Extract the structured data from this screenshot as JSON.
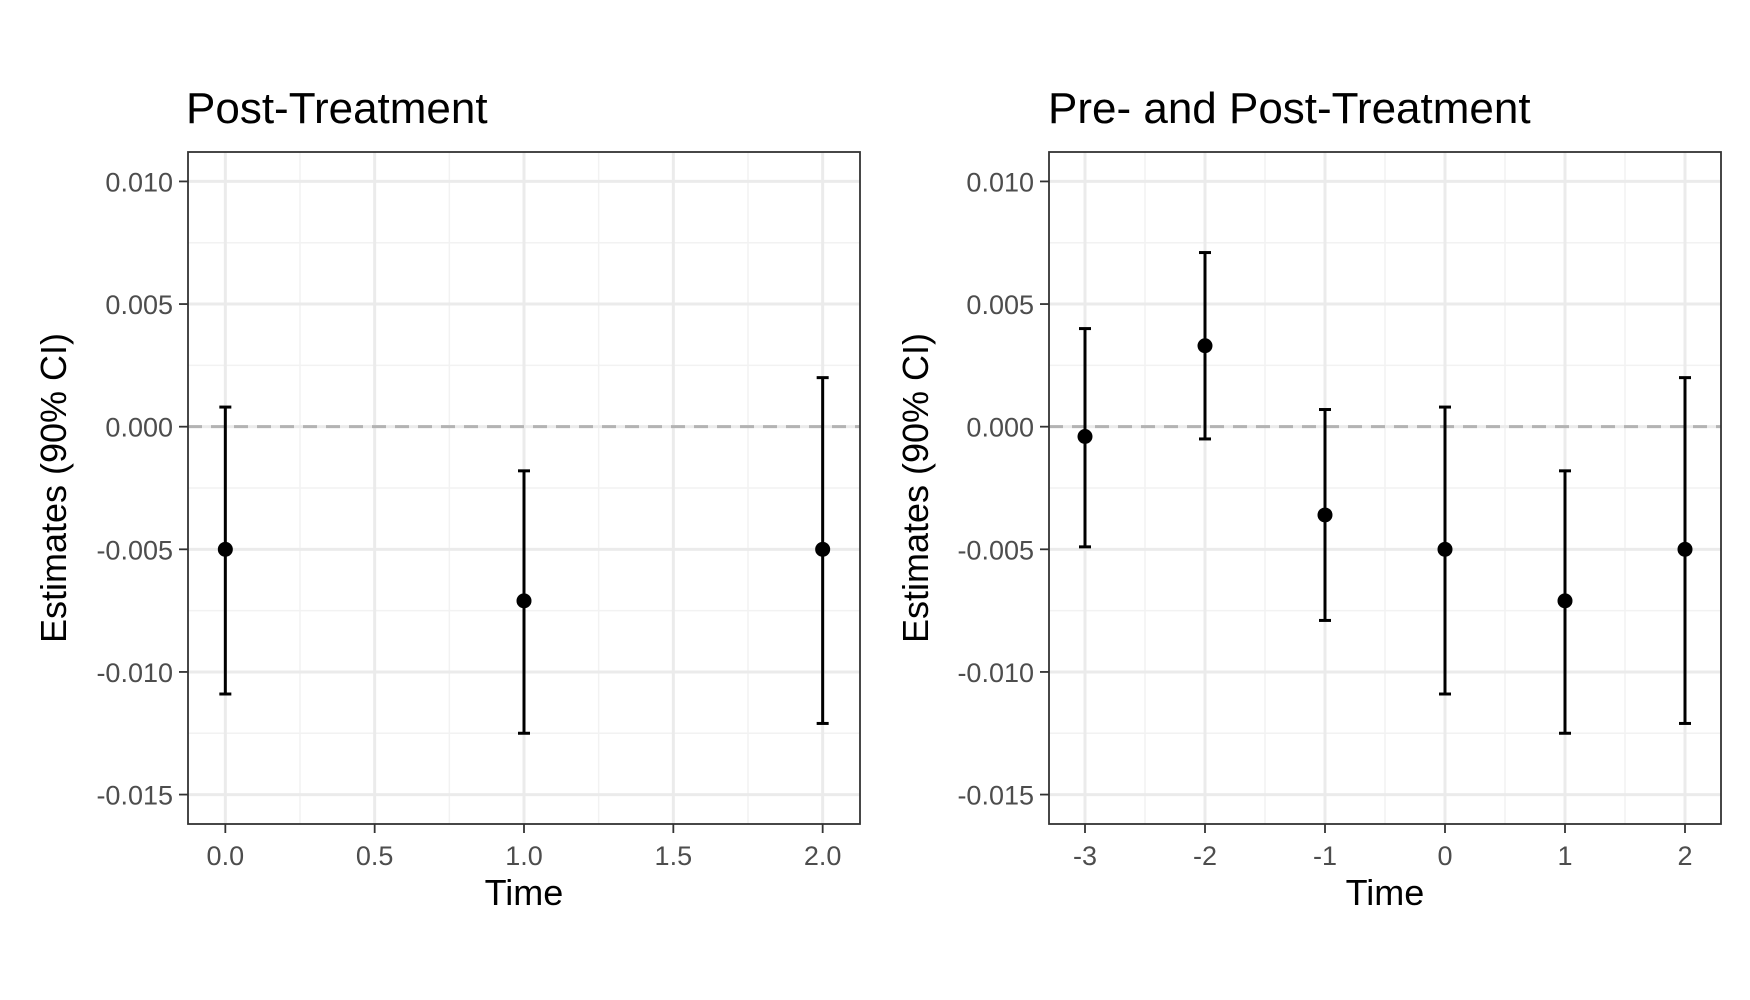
{
  "chart_data": [
    {
      "type": "scatter",
      "title": "Post-Treatment",
      "xlabel": "Time",
      "ylabel": "Estimates (90% CI)",
      "x_ticks": [
        "0.0",
        "0.5",
        "1.0",
        "1.5",
        "2.0"
      ],
      "x_tick_values": [
        0,
        0.5,
        1,
        1.5,
        2
      ],
      "y_ticks": [
        "0.010",
        "0.005",
        "0.000",
        "-0.005",
        "-0.010",
        "-0.015"
      ],
      "y_tick_values": [
        0.01,
        0.005,
        0.0,
        -0.005,
        -0.01,
        -0.015
      ],
      "xlim": [
        -0.125,
        2.125
      ],
      "ylim": [
        -0.0162,
        0.0112
      ],
      "grid": true,
      "reference_line": {
        "y": 0,
        "style": "dashed"
      },
      "series": [
        {
          "x": [
            0,
            1,
            2
          ],
          "y": [
            -0.005,
            -0.0071,
            -0.005
          ],
          "lower": [
            -0.0109,
            -0.0125,
            -0.0121
          ],
          "upper": [
            0.0008,
            -0.0018,
            0.002
          ]
        }
      ]
    },
    {
      "type": "scatter",
      "title": "Pre- and Post-Treatment",
      "xlabel": "Time",
      "ylabel": "Estimates (90% CI)",
      "x_ticks": [
        "-3",
        "-2",
        "-1",
        "0",
        "1",
        "2"
      ],
      "x_tick_values": [
        -3,
        -2,
        -1,
        0,
        1,
        2
      ],
      "y_ticks": [
        "0.010",
        "0.005",
        "0.000",
        "-0.005",
        "-0.010",
        "-0.015"
      ],
      "y_tick_values": [
        0.01,
        0.005,
        0.0,
        -0.005,
        -0.01,
        -0.015
      ],
      "xlim": [
        -3.3,
        2.3
      ],
      "ylim": [
        -0.0162,
        0.0112
      ],
      "grid": true,
      "reference_line": {
        "y": 0,
        "style": "dashed"
      },
      "series": [
        {
          "x": [
            -3,
            -2,
            -1,
            0,
            1,
            2
          ],
          "y": [
            -0.0004,
            0.0033,
            -0.0036,
            -0.005,
            -0.0071,
            -0.005
          ],
          "lower": [
            -0.0049,
            -0.0005,
            -0.0079,
            -0.0109,
            -0.0125,
            -0.0121
          ],
          "upper": [
            0.004,
            0.0071,
            0.0007,
            0.0008,
            -0.0018,
            0.002
          ]
        }
      ]
    }
  ]
}
